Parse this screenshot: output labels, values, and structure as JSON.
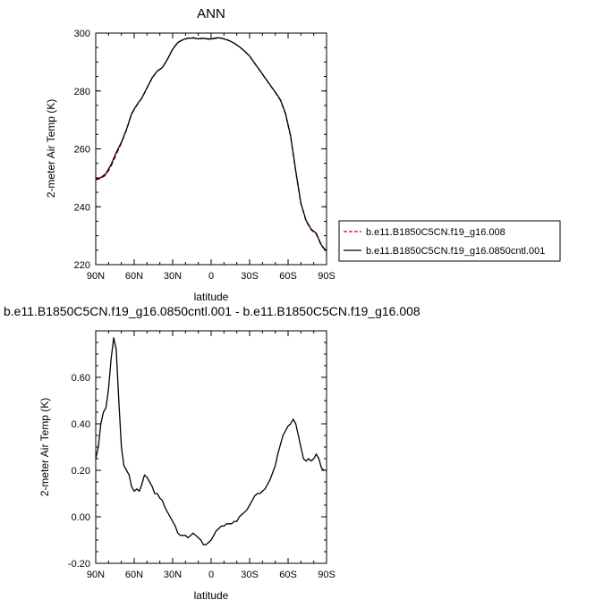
{
  "chart_data": [
    {
      "type": "line",
      "title": "ANN",
      "xlabel": "latitude",
      "ylabel": "2-meter Air Temp (K)",
      "xlim": [
        90,
        -90
      ],
      "ylim": [
        220,
        300
      ],
      "xticks": [
        90,
        60,
        30,
        0,
        -30,
        -60,
        -90
      ],
      "xtick_labels": [
        "90N",
        "60N",
        "30N",
        "0",
        "30S",
        "60S",
        "90S"
      ],
      "yticks": [
        220,
        240,
        260,
        280,
        300
      ],
      "ytick_labels": [
        "220",
        "240",
        "260",
        "280",
        "300"
      ],
      "legend_position": "right",
      "series": [
        {
          "name": "b.e11.B1850C5CN.f19_g16.008",
          "color": "#cc0000",
          "style": "dashed",
          "x": [
            90,
            86,
            82,
            78,
            74,
            70,
            66,
            62,
            58,
            54,
            50,
            46,
            42,
            38,
            34,
            30,
            26,
            22,
            18,
            14,
            10,
            6,
            2,
            -2,
            -6,
            -10,
            -14,
            -18,
            -22,
            -26,
            -30,
            -34,
            -38,
            -42,
            -46,
            -50,
            -54,
            -58,
            -62,
            -66,
            -70,
            -74,
            -78,
            -82,
            -86,
            -90
          ],
          "y": [
            249.3,
            249.7,
            251.0,
            254.0,
            258.0,
            262.0,
            266.5,
            272.0,
            275.0,
            277.5,
            281.0,
            284.5,
            286.8,
            288.0,
            291.0,
            294.5,
            296.8,
            297.8,
            298.3,
            298.4,
            298.1,
            298.3,
            298.0,
            298.2,
            298.5,
            298.1,
            297.4,
            296.5,
            295.3,
            293.8,
            292.0,
            289.5,
            287.0,
            284.5,
            282.0,
            279.5,
            276.8,
            272.0,
            264.0,
            252.0,
            241.0,
            235.0,
            232.0,
            230.5,
            226.5,
            224.5
          ]
        },
        {
          "name": "b.e11.B1850C5CN.f19_g16.0850cntl.001",
          "color": "#000000",
          "style": "solid",
          "x": [
            90,
            86,
            82,
            78,
            74,
            70,
            66,
            62,
            58,
            54,
            50,
            46,
            42,
            38,
            34,
            30,
            26,
            22,
            18,
            14,
            10,
            6,
            2,
            -2,
            -6,
            -10,
            -14,
            -18,
            -22,
            -26,
            -30,
            -34,
            -38,
            -42,
            -46,
            -50,
            -54,
            -58,
            -62,
            -66,
            -70,
            -74,
            -78,
            -82,
            -86,
            -90
          ],
          "y": [
            249.6,
            250.1,
            251.5,
            254.6,
            258.7,
            262.3,
            266.7,
            272.2,
            275.2,
            277.6,
            281.1,
            284.6,
            286.9,
            288.1,
            291.0,
            294.4,
            296.7,
            297.7,
            298.2,
            298.3,
            298.0,
            298.2,
            297.9,
            298.1,
            298.4,
            298.0,
            297.4,
            296.5,
            295.3,
            293.8,
            292.1,
            289.6,
            287.1,
            284.6,
            282.1,
            279.6,
            277.0,
            272.3,
            264.4,
            252.4,
            241.3,
            235.3,
            232.3,
            230.8,
            226.7,
            224.7
          ]
        }
      ]
    },
    {
      "type": "line",
      "title": "b.e11.B1850C5CN.f19_g16.0850cntl.001 - b.e11.B1850C5CN.f19_g16.008",
      "xlabel": "latitude",
      "ylabel": "2-meter Air Temp (K)",
      "xlim": [
        90,
        -90
      ],
      "ylim": [
        -0.2,
        0.8
      ],
      "xticks": [
        90,
        60,
        30,
        0,
        -30,
        -60,
        -90
      ],
      "xtick_labels": [
        "90N",
        "60N",
        "30N",
        "0",
        "30S",
        "60S",
        "90S"
      ],
      "yticks": [
        -0.2,
        0.0,
        0.2,
        0.4,
        0.6
      ],
      "ytick_labels": [
        "-0.20",
        "0.00",
        "0.20",
        "0.40",
        "0.60"
      ],
      "series": [
        {
          "color": "#000000",
          "style": "solid",
          "x": [
            90,
            88,
            86,
            84,
            82,
            80,
            78,
            76,
            74,
            72,
            70,
            68,
            66,
            64,
            62,
            60,
            58,
            56,
            54,
            52,
            50,
            48,
            46,
            44,
            42,
            40,
            38,
            36,
            34,
            32,
            30,
            28,
            26,
            24,
            22,
            20,
            18,
            16,
            14,
            12,
            10,
            8,
            6,
            4,
            2,
            0,
            -2,
            -4,
            -6,
            -8,
            -10,
            -12,
            -14,
            -16,
            -18,
            -20,
            -22,
            -24,
            -26,
            -28,
            -30,
            -32,
            -34,
            -36,
            -38,
            -40,
            -42,
            -44,
            -46,
            -48,
            -50,
            -52,
            -54,
            -56,
            -58,
            -60,
            -62,
            -64,
            -66,
            -68,
            -70,
            -72,
            -74,
            -76,
            -78,
            -80,
            -82,
            -84,
            -86,
            -88,
            -90
          ],
          "y": [
            0.25,
            0.3,
            0.4,
            0.45,
            0.47,
            0.55,
            0.68,
            0.77,
            0.72,
            0.5,
            0.3,
            0.22,
            0.2,
            0.18,
            0.13,
            0.11,
            0.12,
            0.11,
            0.14,
            0.18,
            0.17,
            0.15,
            0.13,
            0.1,
            0.1,
            0.08,
            0.07,
            0.04,
            0.02,
            0.0,
            -0.02,
            -0.04,
            -0.07,
            -0.08,
            -0.08,
            -0.08,
            -0.09,
            -0.08,
            -0.07,
            -0.08,
            -0.09,
            -0.1,
            -0.12,
            -0.12,
            -0.11,
            -0.1,
            -0.08,
            -0.06,
            -0.05,
            -0.04,
            -0.04,
            -0.03,
            -0.03,
            -0.03,
            -0.02,
            -0.02,
            0.0,
            0.01,
            0.02,
            0.03,
            0.05,
            0.07,
            0.09,
            0.1,
            0.1,
            0.11,
            0.12,
            0.14,
            0.16,
            0.19,
            0.22,
            0.27,
            0.31,
            0.35,
            0.37,
            0.39,
            0.4,
            0.42,
            0.4,
            0.35,
            0.3,
            0.25,
            0.24,
            0.25,
            0.24,
            0.25,
            0.27,
            0.25,
            0.21,
            0.2,
            0.2
          ]
        }
      ]
    }
  ]
}
